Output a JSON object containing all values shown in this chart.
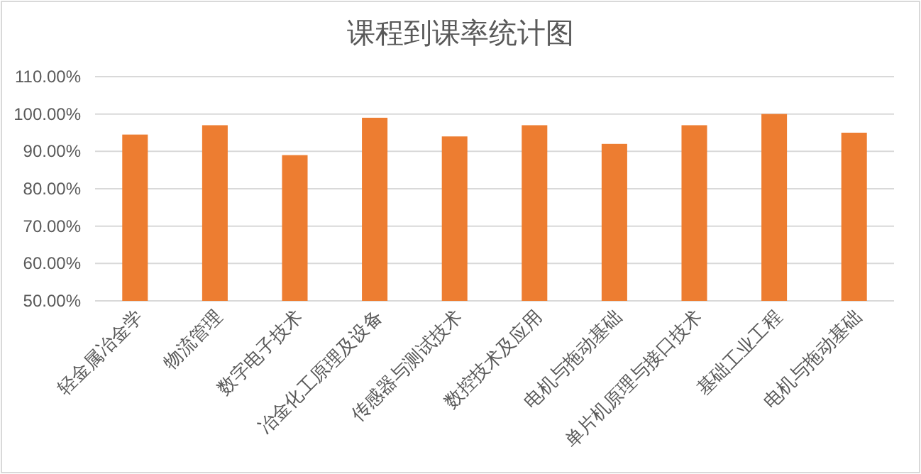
{
  "chart_data": {
    "type": "bar",
    "title": "课程到课率统计图",
    "categories": [
      "轻金属冶金学",
      "物流管理",
      "数字电子技术",
      "冶金化工原理及设备",
      "传感器与测试技术",
      "数控技术及应用",
      "电机与拖动基础",
      "单片机原理与接口技术",
      "基础工业工程",
      "电机与拖动基础"
    ],
    "series": [
      {
        "color": "#ed7d31",
        "values": [
          94.5,
          97,
          89,
          99,
          94,
          97,
          92,
          97,
          100,
          95
        ]
      }
    ],
    "ylim": [
      50,
      110
    ],
    "yticks": [
      {
        "value": 50,
        "label": "50.00%"
      },
      {
        "value": 60,
        "label": "60.00%"
      },
      {
        "value": 70,
        "label": "70.00%"
      },
      {
        "value": 80,
        "label": "80.00%"
      },
      {
        "value": 90,
        "label": "90.00%"
      },
      {
        "value": 100,
        "label": "100.00%"
      },
      {
        "value": 110,
        "label": "110.00%"
      }
    ],
    "grid": "y"
  }
}
